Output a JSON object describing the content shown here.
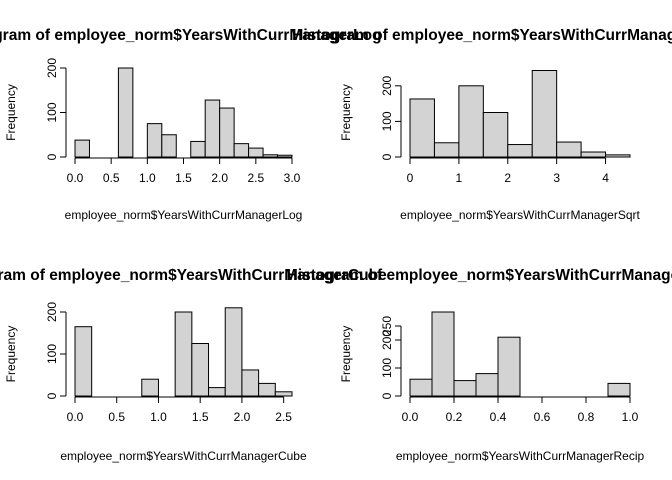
{
  "chart_data": [
    {
      "type": "bar",
      "title": "Histogram of employee_norm$YearsWithCurrManagerLog",
      "xlabel": "employee_norm$YearsWithCurrManagerLog",
      "ylabel": "Frequency",
      "xlim": [
        0,
        3.0
      ],
      "ylim": [
        0,
        200
      ],
      "xticks": [
        "0.0",
        "0.5",
        "1.0",
        "1.5",
        "2.0",
        "2.5",
        "3.0"
      ],
      "yticks": [
        "0",
        "100",
        "200"
      ],
      "bins": [
        {
          "x0": 0.0,
          "x1": 0.2,
          "count": 38
        },
        {
          "x0": 0.2,
          "x1": 0.4,
          "count": 0
        },
        {
          "x0": 0.4,
          "x1": 0.6,
          "count": 0
        },
        {
          "x0": 0.6,
          "x1": 0.8,
          "count": 200
        },
        {
          "x0": 0.8,
          "x1": 1.0,
          "count": 0
        },
        {
          "x0": 1.0,
          "x1": 1.2,
          "count": 75
        },
        {
          "x0": 1.2,
          "x1": 1.4,
          "count": 50
        },
        {
          "x0": 1.4,
          "x1": 1.6,
          "count": 0
        },
        {
          "x0": 1.6,
          "x1": 1.8,
          "count": 35
        },
        {
          "x0": 1.8,
          "x1": 2.0,
          "count": 128
        },
        {
          "x0": 2.0,
          "x1": 2.2,
          "count": 110
        },
        {
          "x0": 2.2,
          "x1": 2.4,
          "count": 30
        },
        {
          "x0": 2.4,
          "x1": 2.6,
          "count": 20
        },
        {
          "x0": 2.6,
          "x1": 2.8,
          "count": 5
        },
        {
          "x0": 2.8,
          "x1": 3.0,
          "count": 4
        }
      ]
    },
    {
      "type": "bar",
      "title": "Histogram of employee_norm$YearsWithCurrManagerSqrt",
      "xlabel": "employee_norm$YearsWithCurrManagerSqrt",
      "ylabel": "Frequency",
      "xlim": [
        0,
        4.5
      ],
      "ylim": [
        0,
        250
      ],
      "xticks": [
        "0",
        "1",
        "2",
        "3",
        "4"
      ],
      "yticks": [
        "0",
        "100",
        "200"
      ],
      "bins": [
        {
          "x0": 0.0,
          "x1": 0.5,
          "count": 163
        },
        {
          "x0": 0.5,
          "x1": 1.0,
          "count": 40
        },
        {
          "x0": 1.0,
          "x1": 1.5,
          "count": 200
        },
        {
          "x0": 1.5,
          "x1": 2.0,
          "count": 125
        },
        {
          "x0": 2.0,
          "x1": 2.5,
          "count": 35
        },
        {
          "x0": 2.5,
          "x1": 3.0,
          "count": 243
        },
        {
          "x0": 3.0,
          "x1": 3.5,
          "count": 42
        },
        {
          "x0": 3.5,
          "x1": 4.0,
          "count": 14
        },
        {
          "x0": 4.0,
          "x1": 4.5,
          "count": 6
        }
      ]
    },
    {
      "type": "bar",
      "title": "Histogram of employee_norm$YearsWithCurrManagerCube",
      "xlabel": "employee_norm$YearsWithCurrManagerCube",
      "ylabel": "Frequency",
      "xlim": [
        0,
        2.6
      ],
      "ylim": [
        0,
        200
      ],
      "xticks": [
        "0.0",
        "0.5",
        "1.0",
        "1.5",
        "2.0",
        "2.5"
      ],
      "yticks": [
        "0",
        "100",
        "200"
      ],
      "bins": [
        {
          "x0": 0.0,
          "x1": 0.2,
          "count": 165
        },
        {
          "x0": 0.2,
          "x1": 0.4,
          "count": 0
        },
        {
          "x0": 0.4,
          "x1": 0.6,
          "count": 0
        },
        {
          "x0": 0.6,
          "x1": 0.8,
          "count": 0
        },
        {
          "x0": 0.8,
          "x1": 1.0,
          "count": 40
        },
        {
          "x0": 1.0,
          "x1": 1.2,
          "count": 0
        },
        {
          "x0": 1.2,
          "x1": 1.4,
          "count": 200
        },
        {
          "x0": 1.4,
          "x1": 1.6,
          "count": 125
        },
        {
          "x0": 1.6,
          "x1": 1.8,
          "count": 20
        },
        {
          "x0": 1.8,
          "x1": 2.0,
          "count": 210
        },
        {
          "x0": 2.0,
          "x1": 2.2,
          "count": 62
        },
        {
          "x0": 2.2,
          "x1": 2.4,
          "count": 30
        },
        {
          "x0": 2.4,
          "x1": 2.6,
          "count": 10
        }
      ]
    },
    {
      "type": "bar",
      "title": "Histogram of employee_norm$YearsWithCurrManagerRecip",
      "xlabel": "employee_norm$YearsWithCurrManagerRecip",
      "ylabel": "Frequency",
      "xlim": [
        0,
        1.0
      ],
      "ylim": [
        0,
        300
      ],
      "xticks": [
        "0.0",
        "0.2",
        "0.4",
        "0.6",
        "0.8",
        "1.0"
      ],
      "yticks": [
        "0",
        "100",
        "200",
        "250"
      ],
      "bins": [
        {
          "x0": 0.0,
          "x1": 0.1,
          "count": 60
        },
        {
          "x0": 0.1,
          "x1": 0.2,
          "count": 300
        },
        {
          "x0": 0.2,
          "x1": 0.3,
          "count": 55
        },
        {
          "x0": 0.3,
          "x1": 0.4,
          "count": 80
        },
        {
          "x0": 0.4,
          "x1": 0.5,
          "count": 210
        },
        {
          "x0": 0.5,
          "x1": 0.6,
          "count": 0
        },
        {
          "x0": 0.6,
          "x1": 0.7,
          "count": 0
        },
        {
          "x0": 0.7,
          "x1": 0.8,
          "count": 0
        },
        {
          "x0": 0.8,
          "x1": 0.9,
          "count": 0
        },
        {
          "x0": 0.9,
          "x1": 1.0,
          "count": 45
        }
      ]
    }
  ]
}
